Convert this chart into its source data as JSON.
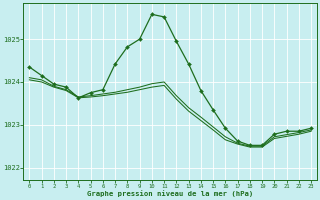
{
  "background_color": "#c8eef0",
  "grid_color": "#ffffff",
  "line_color": "#1e6e1e",
  "xlabel": "Graphe pression niveau de la mer (hPa)",
  "ylim": [
    1021.7,
    1025.85
  ],
  "yticks": [
    1022,
    1023,
    1024,
    1025
  ],
  "xticks": [
    0,
    1,
    2,
    3,
    4,
    5,
    6,
    7,
    8,
    9,
    10,
    11,
    12,
    13,
    14,
    15,
    16,
    17,
    18,
    19,
    20,
    21,
    22,
    23
  ],
  "series_no_marker": [
    [
      1024.1,
      1024.05,
      1023.9,
      1023.82,
      1023.65,
      1023.68,
      1023.72,
      1023.76,
      1023.82,
      1023.88,
      1023.96,
      1024.0,
      1023.68,
      1023.4,
      1023.18,
      1022.95,
      1022.72,
      1022.57,
      1022.5,
      1022.5,
      1022.72,
      1022.77,
      1022.82,
      1022.88
    ],
    [
      1024.05,
      1024.0,
      1023.88,
      1023.8,
      1023.63,
      1023.65,
      1023.68,
      1023.72,
      1023.76,
      1023.82,
      1023.88,
      1023.92,
      1023.6,
      1023.32,
      1023.1,
      1022.88,
      1022.65,
      1022.55,
      1022.48,
      1022.48,
      1022.68,
      1022.73,
      1022.78,
      1022.85
    ]
  ],
  "series_marker": {
    "x": [
      0,
      1,
      2,
      3,
      4,
      5,
      6,
      7,
      8,
      9,
      10,
      11,
      12,
      13,
      14,
      15,
      16,
      17,
      18,
      19,
      20,
      21,
      22,
      23
    ],
    "y": [
      1024.35,
      1024.15,
      1023.95,
      1023.88,
      1023.63,
      1023.75,
      1023.82,
      1024.42,
      1024.82,
      1025.0,
      1025.58,
      1025.52,
      1024.95,
      1024.42,
      1023.8,
      1023.35,
      1022.92,
      1022.62,
      1022.52,
      1022.52,
      1022.78,
      1022.85,
      1022.85,
      1022.92
    ]
  }
}
